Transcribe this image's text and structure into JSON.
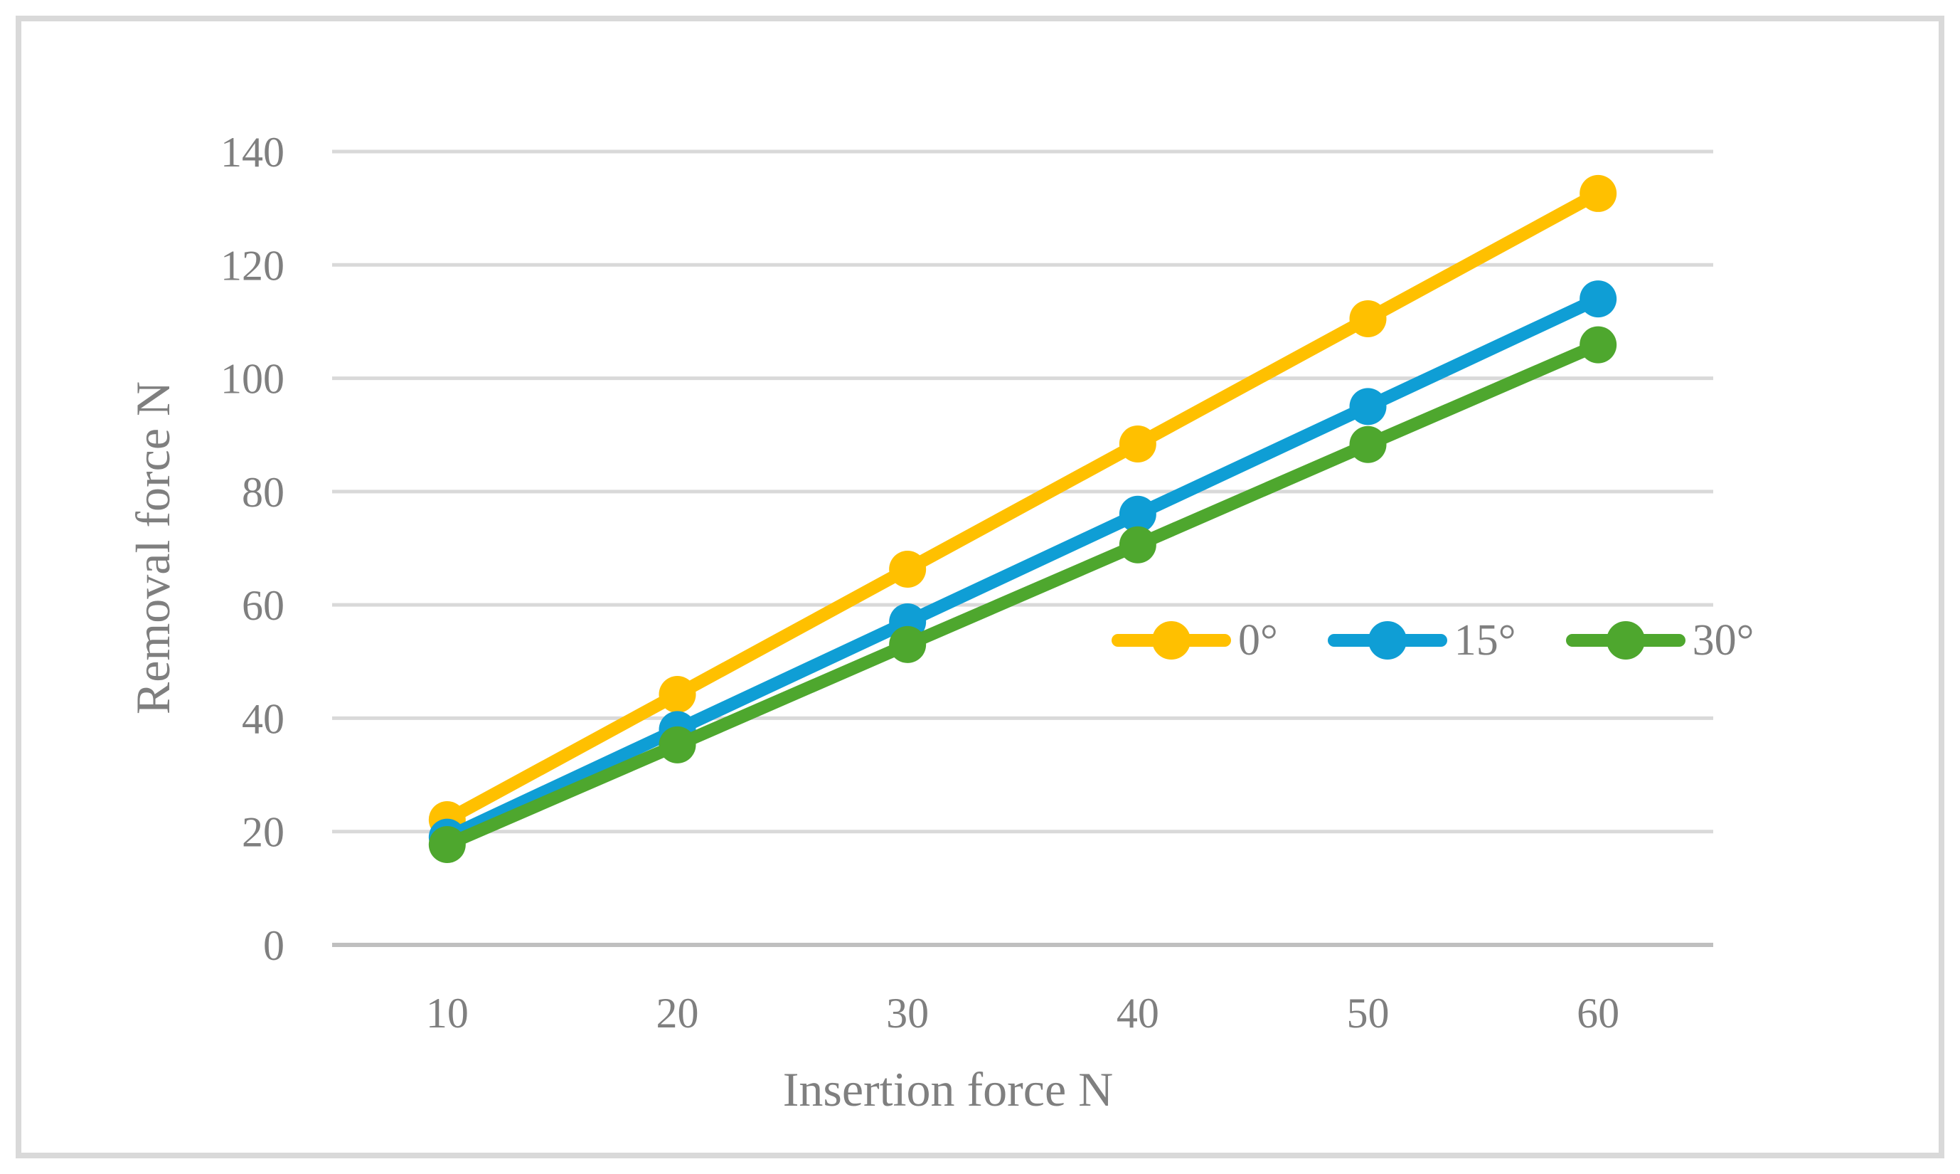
{
  "figure": {
    "background_color": "#FFFFFF",
    "border_color": "#D9D9D9"
  },
  "chart_data": {
    "type": "line",
    "title": "",
    "xlabel": "Insertion force N",
    "ylabel": "Removal force N",
    "x": [
      10,
      20,
      30,
      40,
      50,
      60
    ],
    "ylim": [
      0,
      140
    ],
    "yticks": [
      0,
      20,
      40,
      60,
      80,
      100,
      120,
      140
    ],
    "grid": true,
    "legend_position": "inside-middle-right",
    "series": [
      {
        "name": "0°",
        "color": "#FFC000",
        "values": [
          22.1,
          44.2,
          66.3,
          88.4,
          110.5,
          132.6
        ]
      },
      {
        "name": "15°",
        "color": "#0F9ED5",
        "values": [
          19.0,
          38.0,
          57.0,
          76.0,
          95.0,
          114.0
        ]
      },
      {
        "name": "30°",
        "color": "#4EA72E",
        "values": [
          17.7,
          35.3,
          53.0,
          70.6,
          88.3,
          105.9
        ]
      }
    ],
    "colors": {
      "gridline": "#D9D9D9",
      "axis_line": "#BFBFBF",
      "tick_label": "#7F7F7F",
      "axis_title": "#7F7F7F",
      "legend_label": "#7F7F7F"
    }
  }
}
